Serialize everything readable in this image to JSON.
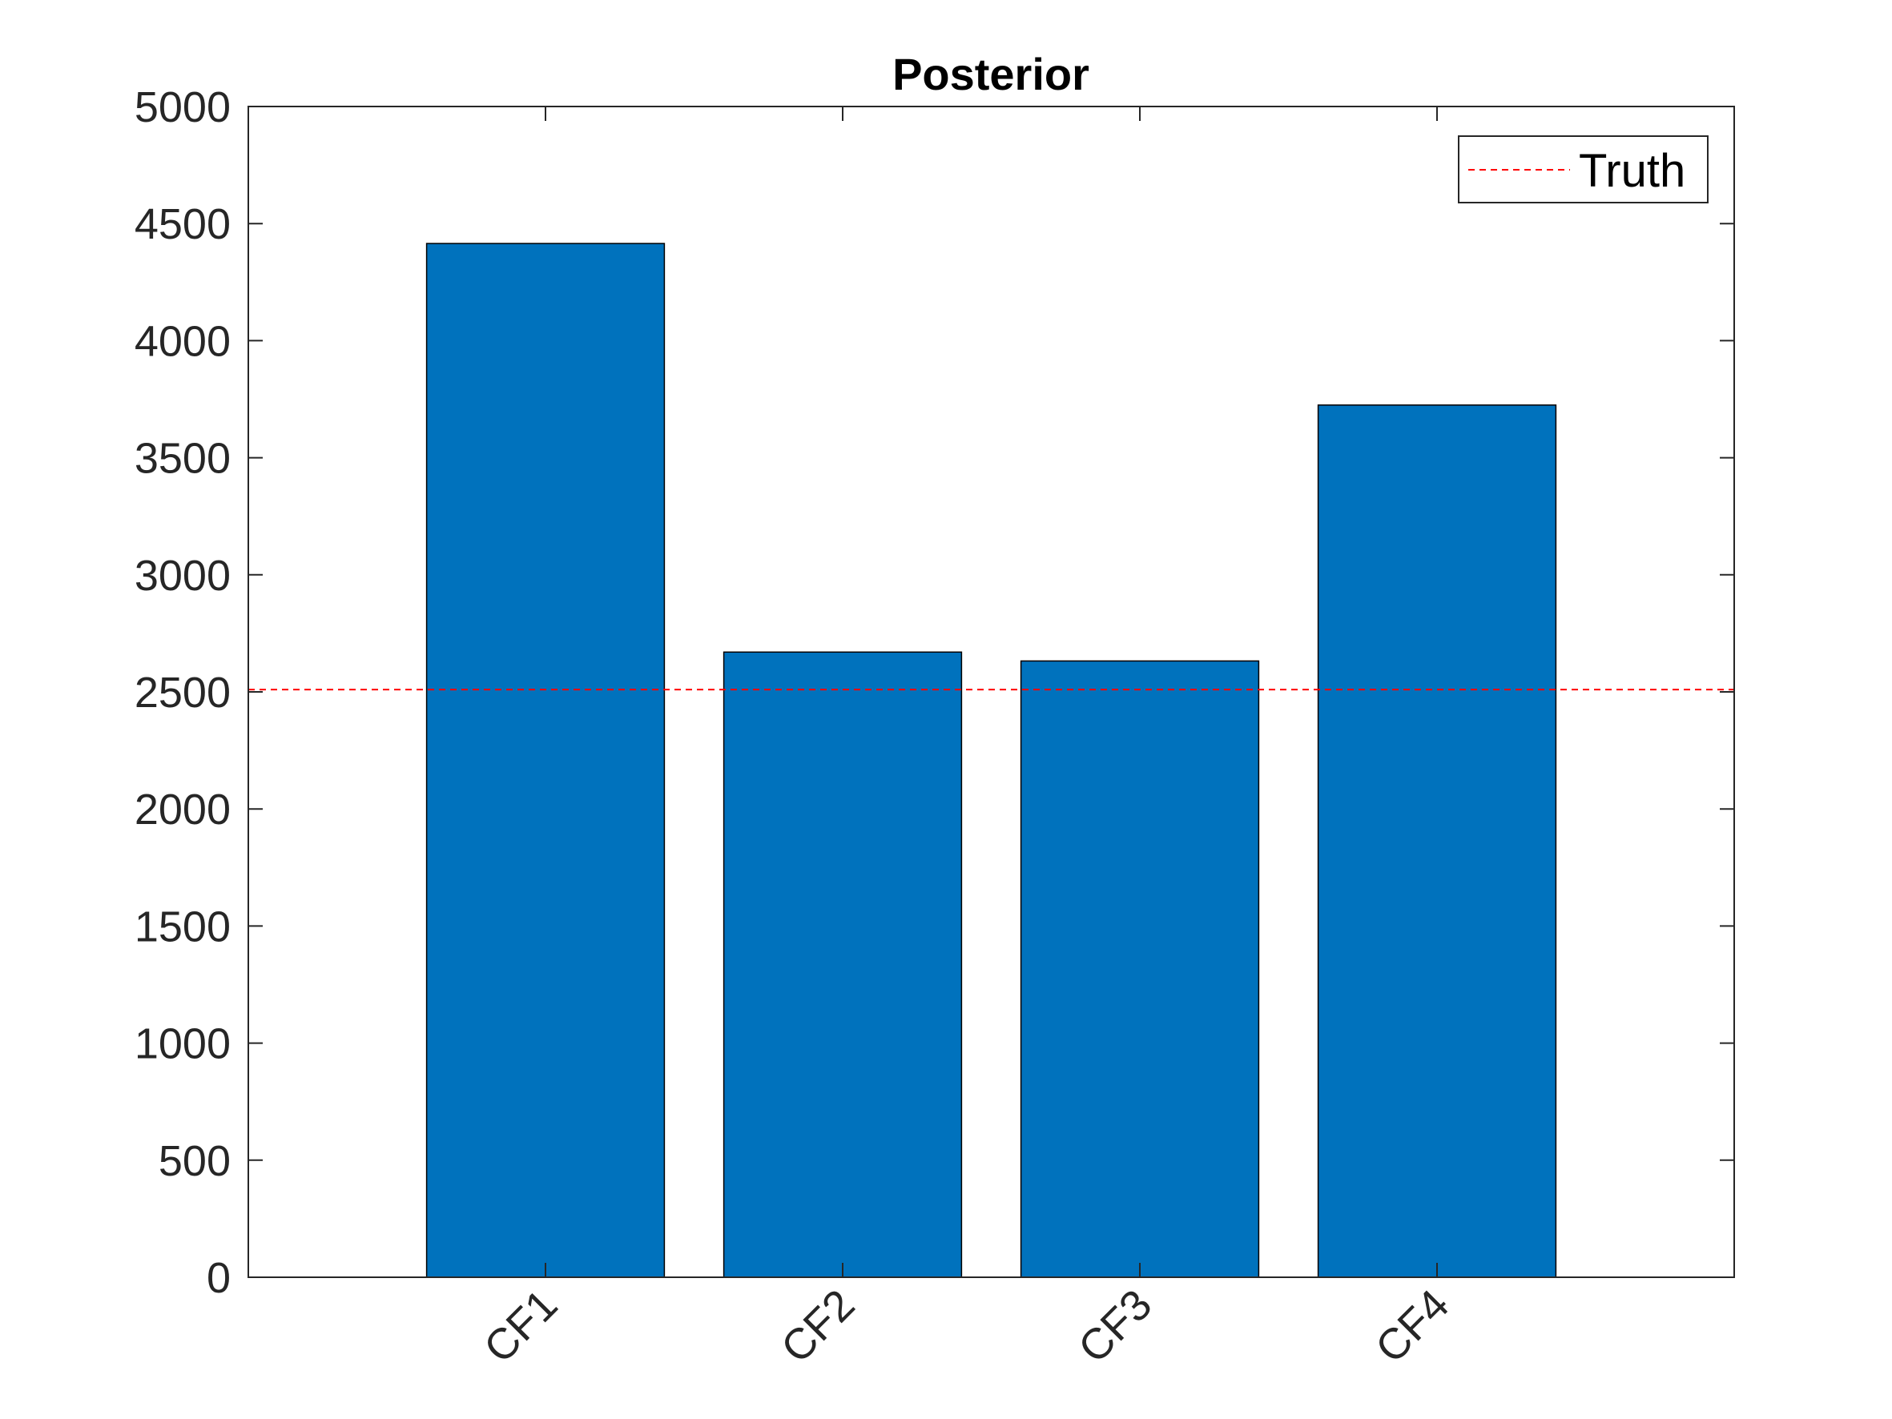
{
  "chart_data": {
    "type": "bar",
    "title": "Posterior",
    "xlabel": "",
    "ylabel": "",
    "categories": [
      "CF1",
      "CF2",
      "CF3",
      "CF4"
    ],
    "values": [
      4415,
      2670,
      2632,
      3725
    ],
    "ylim": [
      0,
      5000
    ],
    "xlim": [
      0,
      5
    ],
    "yticks": [
      "0",
      "500",
      "1000",
      "1500",
      "2000",
      "2500",
      "3000",
      "3500",
      "4000",
      "4500",
      "5000"
    ],
    "bar_color": "#0072BD",
    "reference_line": {
      "name": "Truth",
      "value": 2510,
      "style": "dashed",
      "color": "#FF0000"
    },
    "legend": {
      "position": "top-right",
      "entries": [
        "Truth"
      ]
    },
    "grid": false
  }
}
